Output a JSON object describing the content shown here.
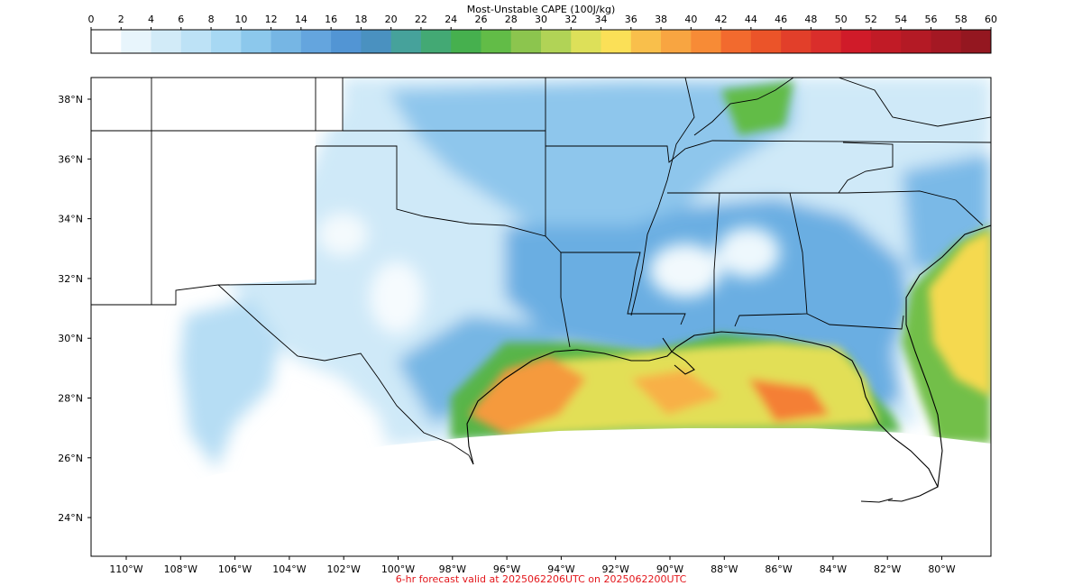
{
  "colorbar": {
    "title": "Most-Unstable CAPE (100J/kg)",
    "ticks": [
      "0",
      "2",
      "4",
      "6",
      "8",
      "10",
      "12",
      "14",
      "16",
      "18",
      "20",
      "22",
      "24",
      "26",
      "28",
      "30",
      "32",
      "34",
      "36",
      "38",
      "40",
      "42",
      "44",
      "46",
      "48",
      "50",
      "52",
      "54",
      "56",
      "58",
      "60"
    ],
    "colors": [
      "#ffffff",
      "#e8f5fc",
      "#d2ebf8",
      "#bde2f6",
      "#a7d8f3",
      "#8cc8ec",
      "#76b6e4",
      "#64a5de",
      "#5295d4",
      "#4a91c0",
      "#46a29b",
      "#43a974",
      "#46b04e",
      "#62bc47",
      "#8cc54e",
      "#b1d356",
      "#dde059",
      "#fbe057",
      "#f9bf4b",
      "#f8a541",
      "#f78b36",
      "#f26a2e",
      "#eb5429",
      "#e23f2a",
      "#da2e2b",
      "#d01b29",
      "#c11b26",
      "#b41a25",
      "#a41823",
      "#941720"
    ]
  },
  "map": {
    "lat_labels": [
      "38°N",
      "36°N",
      "34°N",
      "32°N",
      "30°N",
      "28°N",
      "26°N",
      "24°N"
    ],
    "lon_labels": [
      "110°W",
      "108°W",
      "106°W",
      "104°W",
      "102°W",
      "100°W",
      "98°W",
      "96°W",
      "94°W",
      "92°W",
      "90°W",
      "88°W",
      "86°W",
      "84°W",
      "82°W",
      "80°W"
    ]
  },
  "caption": "6-hr forecast valid at 2025062206UTC on 2025062200UTC"
}
